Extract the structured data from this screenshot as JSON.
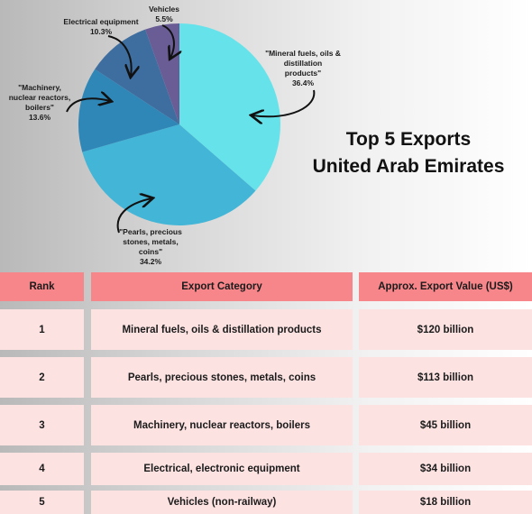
{
  "chart_data": {
    "type": "pie",
    "title": "Top 5 Exports",
    "subtitle": "United Arab Emirates",
    "slices": [
      {
        "label": "\"Mineral fuels, oils & distillation products\"",
        "label_lines": [
          "\"Mineral fuels, oils &",
          "distillation",
          "products\""
        ],
        "value": 36.4,
        "value_label": "36.4%",
        "color": "#66e3ea"
      },
      {
        "label": "\"Pearls, precious stones, metals, coins\"",
        "label_lines": [
          "\"Pearls, precious",
          "stones, metals,",
          "coins\""
        ],
        "value": 34.2,
        "value_label": "34.2%",
        "color": "#43b5d6"
      },
      {
        "label": "\"Machinery, nuclear reactors, boilers\"",
        "label_lines": [
          "\"Machinery,",
          "nuclear reactors,",
          "boilers\""
        ],
        "value": 13.6,
        "value_label": "13.6%",
        "color": "#2f87b8"
      },
      {
        "label": "Electrical equipment",
        "label_lines": [
          "Electrical equipment"
        ],
        "value": 10.3,
        "value_label": "10.3%",
        "color": "#3e6e9f"
      },
      {
        "label": "Vehicles",
        "label_lines": [
          "Vehicles"
        ],
        "value": 5.5,
        "value_label": "5.5%",
        "color": "#6a5d96"
      }
    ]
  },
  "table": {
    "headers": [
      "Rank",
      "Export Category",
      "Approx. Export Value (US$)"
    ],
    "rows": [
      [
        "1",
        "Mineral fuels, oils & distillation products",
        "$120 billion"
      ],
      [
        "2",
        "Pearls, precious stones, metals, coins",
        "$113 billion"
      ],
      [
        "3",
        "Machinery, nuclear reactors, boilers",
        "$45 billion"
      ],
      [
        "4",
        "Electrical, electronic equipment",
        "$34 billion"
      ],
      [
        "5",
        "Vehicles (non-railway)",
        "$18 billion"
      ]
    ]
  }
}
